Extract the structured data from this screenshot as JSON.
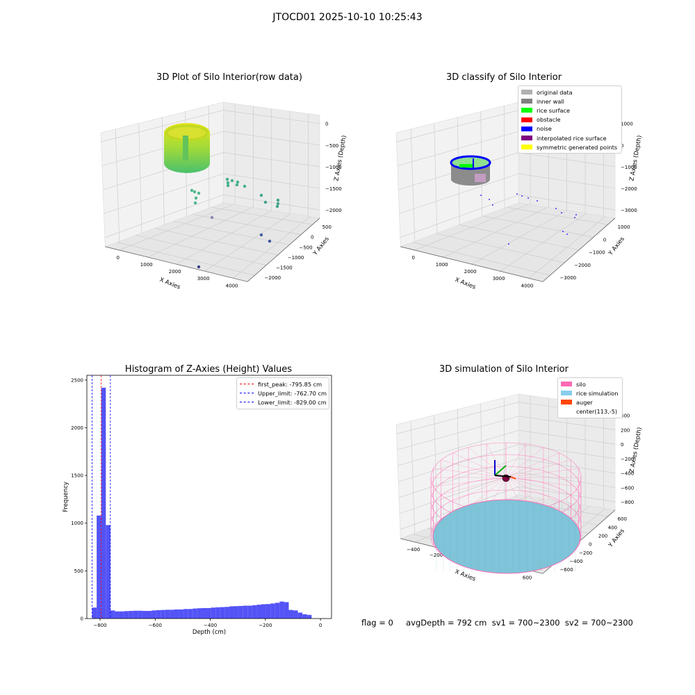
{
  "suptitle": "JTOCD01 2025-10-10 10:25:43",
  "status_line": "flag = 0     avgDepth = 792 cm  sv1 = 700~2300  sv2 = 700~2300",
  "chart_data": [
    {
      "type": "scatter",
      "projection": "3d",
      "title": "3D Plot of Silo Interior(row data)",
      "xlabel": "X Axies",
      "ylabel": "Y Axies",
      "zlabel": "Z Axies (Depth)",
      "x_ticks": [
        "0",
        "1000",
        "2000",
        "3000",
        "4000"
      ],
      "y_ticks": [
        "500",
        "0",
        "−500",
        "−1000",
        "−1500",
        "−2000"
      ],
      "z_ticks": [
        "0",
        "−500",
        "−1000",
        "−1500",
        "−2000"
      ],
      "grid": true,
      "colormap": "viridis"
    },
    {
      "type": "scatter",
      "projection": "3d",
      "title": "3D classify of Silo Interior",
      "xlabel": "X Axies",
      "ylabel": "Y Axies",
      "zlabel": "Z Axies (Depth)",
      "x_ticks": [
        "0",
        "1000",
        "2000",
        "3000",
        "4000"
      ],
      "y_ticks": [
        "1000",
        "0",
        "−1000",
        "−2000",
        "−3000"
      ],
      "z_ticks": [
        "1000",
        "0",
        "−1000",
        "−2000",
        "−3000"
      ],
      "grid": true,
      "legend_position": "top-right",
      "legend": [
        {
          "label": "original data",
          "color": "#b0b0b0"
        },
        {
          "label": "inner wall",
          "color": "#808080"
        },
        {
          "label": "rice surface",
          "color": "#00ff00"
        },
        {
          "label": "obstacle",
          "color": "#ff0000"
        },
        {
          "label": "noise",
          "color": "#0000ff"
        },
        {
          "label": "interpolated rice surface",
          "color": "#800080"
        },
        {
          "label": "symmetric generated points",
          "color": "#ffff00"
        }
      ]
    },
    {
      "type": "bar",
      "title": "Histogram of Z-Axies (Height) Values",
      "xlabel": "Depth (cm)",
      "ylabel": "Frequency",
      "xlim": [
        -848,
        40
      ],
      "ylim": [
        0,
        2550
      ],
      "x_ticks": [
        -800,
        -600,
        -400,
        -200,
        0
      ],
      "x_tick_labels": [
        "−800",
        "−600",
        "−400",
        "−200",
        "0"
      ],
      "y_ticks": [
        0,
        500,
        1000,
        1500,
        2000,
        2500
      ],
      "bar_color": "#4a4af5",
      "bin_width": 16.6,
      "bin_start": -829,
      "values": [
        115,
        1080,
        2420,
        980,
        85,
        75,
        75,
        78,
        80,
        82,
        82,
        80,
        80,
        85,
        88,
        90,
        92,
        92,
        95,
        95,
        100,
        100,
        105,
        108,
        110,
        110,
        115,
        118,
        120,
        122,
        128,
        130,
        132,
        135,
        135,
        140,
        145,
        150,
        152,
        158,
        165,
        178,
        172,
        90,
        85,
        62,
        45,
        38
      ],
      "lines": [
        {
          "label": "first_peak: -795.85 cm",
          "x": -795.85,
          "color": "#ff0000"
        },
        {
          "label": "Upper_limit: -762.70 cm",
          "x": -762.7,
          "color": "#0000ff"
        },
        {
          "label": "Lower_limit: -829.00 cm",
          "x": -829.0,
          "color": "#0000ff"
        }
      ],
      "legend_position": "top-right"
    },
    {
      "type": "surface",
      "projection": "3d",
      "title": "3D simulation of Silo Interior",
      "xlabel": "X Axies",
      "ylabel": "Y Axies",
      "zlabel": "Z Axies (Depth)",
      "x_ticks": [
        "−400",
        "−200",
        "0",
        "200",
        "400",
        "600"
      ],
      "y_ticks": [
        "600",
        "400",
        "200",
        "0",
        "−200",
        "−400",
        "−600"
      ],
      "z_ticks": [
        "400",
        "200",
        "0",
        "−200",
        "−400",
        "−600",
        "−800"
      ],
      "grid": true,
      "legend_position": "top-right",
      "legend": [
        {
          "label": "silo",
          "color": "#ff69b4"
        },
        {
          "label": "rice simulation",
          "color": "#87ceeb"
        },
        {
          "label": "auger",
          "color": "#ff4500"
        },
        {
          "label": "center(113,-5)",
          "color": ""
        }
      ]
    }
  ]
}
